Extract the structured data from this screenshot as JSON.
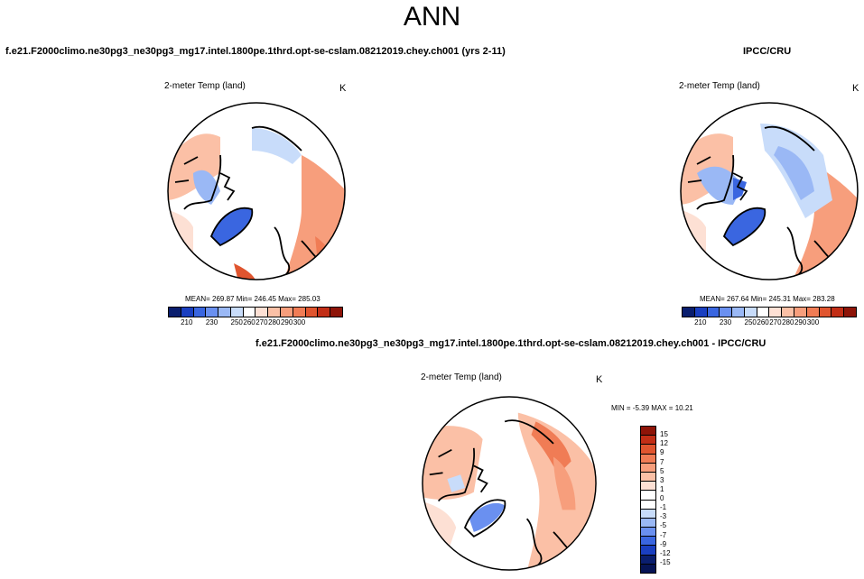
{
  "title": "ANN",
  "panels": [
    {
      "case": "f.e21.F2000climo.ne30pg3_ne30pg3_mg17.intel.1800pe.1thrd.opt-se-cslam.08212019.chey.ch001 (yrs 2-11)",
      "variable": "2-meter Temp (land)",
      "units": "K",
      "stats": "MEAN= 269.87  Min= 246.45  Max= 285.03"
    },
    {
      "case": "IPCC/CRU",
      "variable": "2-meter Temp (land)",
      "units": "K",
      "stats": "MEAN= 267.64  Min= 245.31  Max= 283.28"
    },
    {
      "case": "f.e21.F2000climo.ne30pg3_ne30pg3_mg17.intel.1800pe.1thrd.opt-se-cslam.08212019.chey.ch001 - IPCC/CRU",
      "variable": "2-meter Temp (land)",
      "units": "K",
      "stats": "MIN =  -5.39 MAX =  10.21"
    }
  ],
  "colorbar_abs": {
    "labels": [
      "210",
      "230",
      "250",
      "260",
      "270",
      "280",
      "290",
      "300"
    ],
    "colors": [
      "#0a1e6e",
      "#1a3fc0",
      "#3a66e0",
      "#6a90f0",
      "#9ab8f5",
      "#c8dcfa",
      "#ffffff",
      "#fde0d4",
      "#fbc0a6",
      "#f79e7c",
      "#f07c55",
      "#e0552f",
      "#c22e16",
      "#8e1408"
    ]
  },
  "colorbar_diff": {
    "labels": [
      "15",
      "12",
      "9",
      "7",
      "5",
      "3",
      "1",
      "0",
      "-1",
      "-3",
      "-5",
      "-7",
      "-9",
      "-12",
      "-15"
    ],
    "colors": [
      "#8e1408",
      "#c22e16",
      "#e0552f",
      "#f07c55",
      "#f79e7c",
      "#fbc0a6",
      "#fde0d4",
      "#ffffff",
      "#ffffff",
      "#c8dcfa",
      "#9ab8f5",
      "#6a90f0",
      "#3a66e0",
      "#1a3fc0",
      "#0a1e6e",
      "#061455"
    ]
  }
}
